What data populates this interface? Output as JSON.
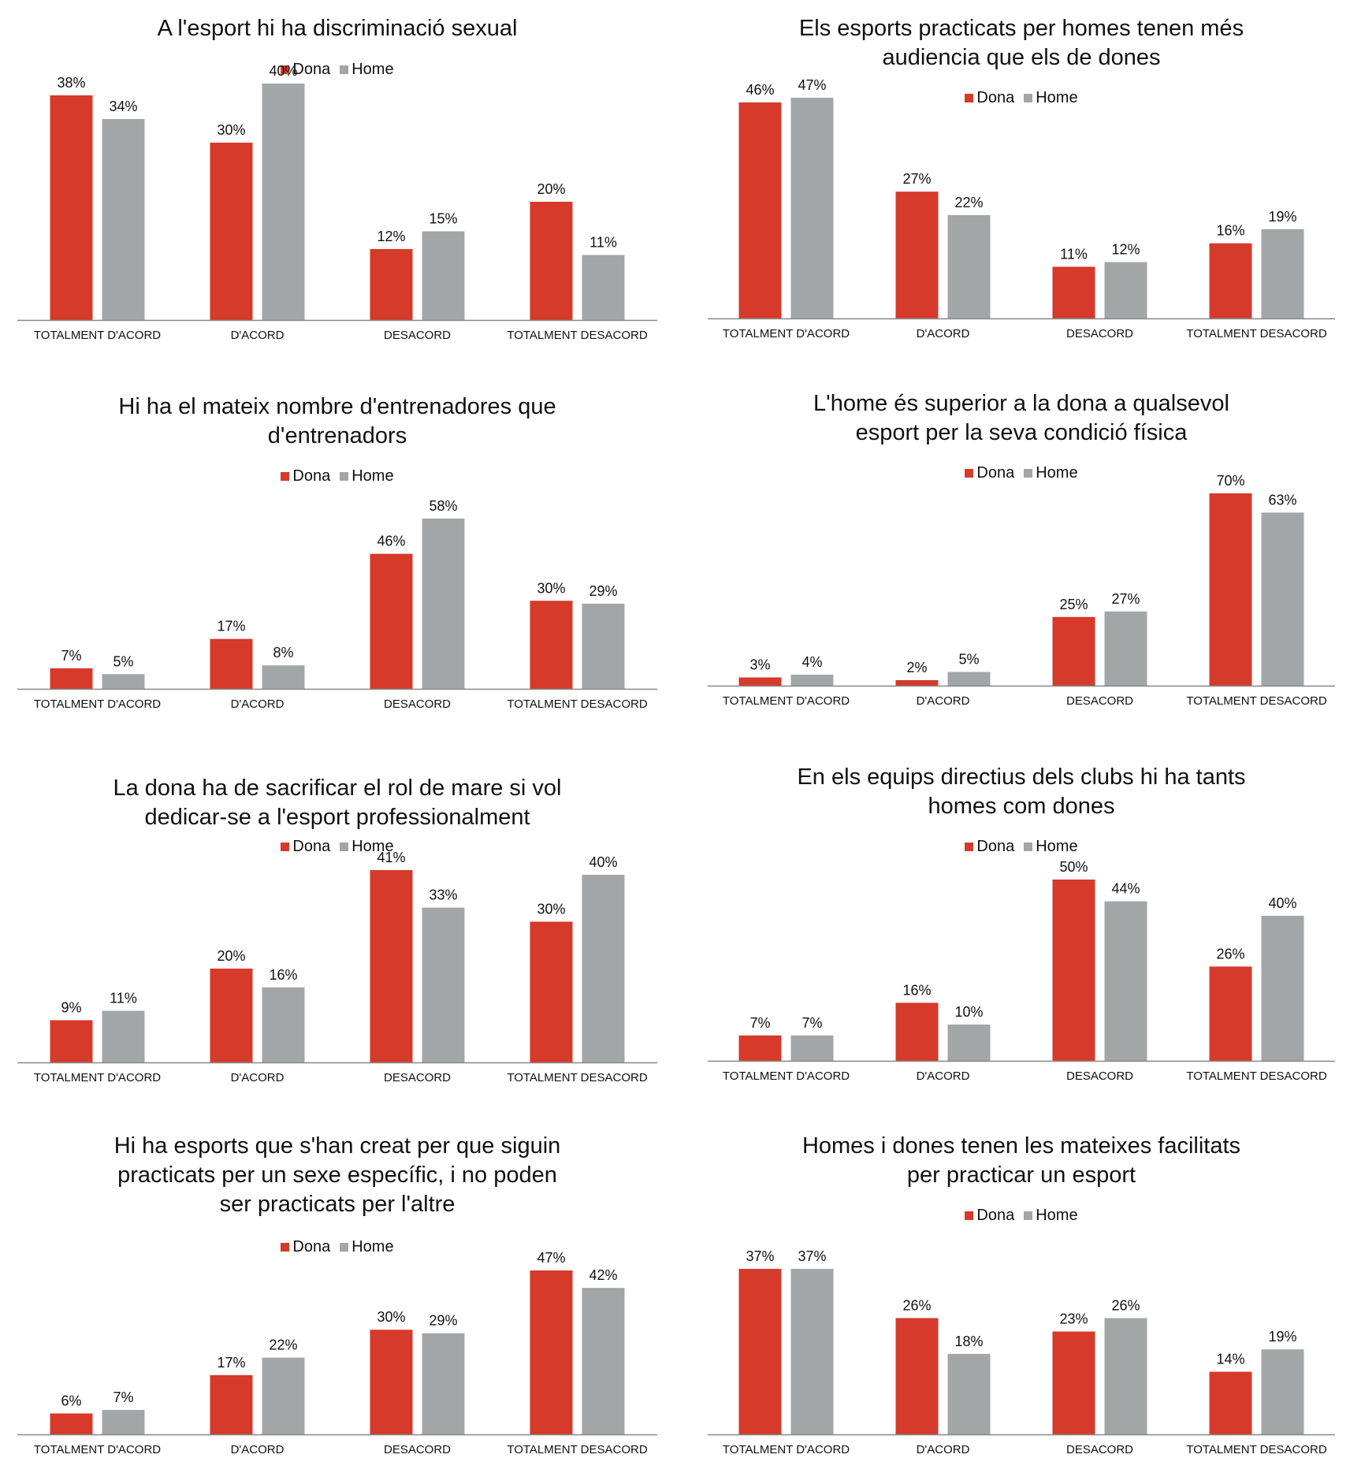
{
  "series_names": [
    "Dona",
    "Home"
  ],
  "colors": {
    "dona": "#d63a2a",
    "home": "#a3a6a7",
    "axis": "#888888"
  },
  "chart_data": [
    {
      "type": "bar",
      "title_lines": [
        "A l'esport hi ha discriminació sexual"
      ],
      "categories": [
        "TOTALMENT D'ACORD",
        "D'ACORD",
        "DESACORD",
        "TOTALMENT DESACORD"
      ],
      "series": [
        {
          "name": "Dona",
          "values": [
            38,
            30,
            12,
            20
          ]
        },
        {
          "name": "Home",
          "values": [
            34,
            40,
            15,
            11
          ]
        }
      ],
      "value_labels": {
        "Dona": [
          "38%",
          "30%",
          "12%",
          "20%"
        ],
        "Home": [
          "34%",
          "40%",
          "15%",
          "11%"
        ]
      },
      "unit": "%"
    },
    {
      "type": "bar",
      "title_lines": [
        "Els esports practicats per homes tenen més",
        "audiencia que els de dones"
      ],
      "categories": [
        "TOTALMENT D'ACORD",
        "D'ACORD",
        "DESACORD",
        "TOTALMENT DESACORD"
      ],
      "series": [
        {
          "name": "Dona",
          "values": [
            46,
            27,
            11,
            16
          ]
        },
        {
          "name": "Home",
          "values": [
            47,
            22,
            12,
            19
          ]
        }
      ],
      "value_labels": {
        "Dona": [
          "46%",
          "27%",
          "11%",
          "16%"
        ],
        "Home": [
          "47%",
          "22%",
          "12%",
          "19%"
        ]
      },
      "unit": "%"
    },
    {
      "type": "bar",
      "title_lines": [
        "Hi ha el mateix nombre d'entrenadores que",
        "d'entrenadors"
      ],
      "categories": [
        "TOTALMENT D'ACORD",
        "D'ACORD",
        "DESACORD",
        "TOTALMENT DESACORD"
      ],
      "series": [
        {
          "name": "Dona",
          "values": [
            7,
            17,
            46,
            30
          ]
        },
        {
          "name": "Home",
          "values": [
            5,
            8,
            58,
            29
          ]
        }
      ],
      "value_labels": {
        "Dona": [
          "7%",
          "17%",
          "46%",
          "30%"
        ],
        "Home": [
          "5%",
          "8%",
          "58%",
          "29%"
        ]
      },
      "unit": "%"
    },
    {
      "type": "bar",
      "title_lines": [
        "L'home és superior a la dona a qualsevol",
        "esport per la seva condició física"
      ],
      "categories": [
        "TOTALMENT D'ACORD",
        "D'ACORD",
        "DESACORD",
        "TOTALMENT DESACORD"
      ],
      "series": [
        {
          "name": "Dona",
          "values": [
            3,
            2,
            25,
            70
          ]
        },
        {
          "name": "Home",
          "values": [
            4,
            5,
            27,
            63
          ]
        }
      ],
      "value_labels": {
        "Dona": [
          "3%",
          "2%",
          "25%",
          "70%"
        ],
        "Home": [
          "4%",
          "5%",
          "27%",
          "63%"
        ]
      },
      "unit": "%"
    },
    {
      "type": "bar",
      "title_lines": [
        "La dona ha de sacrificar el rol de mare si vol",
        "dedicar-se a l'esport professionalment"
      ],
      "categories": [
        "TOTALMENT D'ACORD",
        "D'ACORD",
        "DESACORD",
        "TOTALMENT DESACORD"
      ],
      "series": [
        {
          "name": "Dona",
          "values": [
            9,
            20,
            41,
            30
          ]
        },
        {
          "name": "Home",
          "values": [
            11,
            16,
            33,
            40
          ]
        }
      ],
      "value_labels": {
        "Dona": [
          "9%",
          "20%",
          "41%",
          "30%"
        ],
        "Home": [
          "11%",
          "16%",
          "33%",
          "40%"
        ]
      },
      "unit": "%"
    },
    {
      "type": "bar",
      "title_lines": [
        "En els equips directius dels clubs hi ha tants",
        "homes com dones"
      ],
      "categories": [
        "TOTALMENT D'ACORD",
        "D'ACORD",
        "DESACORD",
        "TOTALMENT DESACORD"
      ],
      "series": [
        {
          "name": "Dona",
          "values": [
            7,
            16,
            50,
            26
          ]
        },
        {
          "name": "Home",
          "values": [
            7,
            10,
            44,
            40
          ]
        }
      ],
      "value_labels": {
        "Dona": [
          "7%",
          "16%",
          "50%",
          "26%"
        ],
        "Home": [
          "7%",
          "10%",
          "44%",
          "40%"
        ]
      },
      "unit": "%"
    },
    {
      "type": "bar",
      "title_lines": [
        "Hi ha esports que s'han creat per que siguin",
        "practicats per un sexe específic, i no poden",
        "ser practicats per l'altre"
      ],
      "categories": [
        "TOTALMENT D'ACORD",
        "D'ACORD",
        "DESACORD",
        "TOTALMENT DESACORD"
      ],
      "series": [
        {
          "name": "Dona",
          "values": [
            6,
            17,
            30,
            47
          ]
        },
        {
          "name": "Home",
          "values": [
            7,
            22,
            29,
            42
          ]
        }
      ],
      "value_labels": {
        "Dona": [
          "6%",
          "17%",
          "30%",
          "47%"
        ],
        "Home": [
          "7%",
          "22%",
          "29%",
          "42%"
        ]
      },
      "unit": "%"
    },
    {
      "type": "bar",
      "title_lines": [
        "Homes i dones tenen les mateixes facilitats",
        "per practicar un esport"
      ],
      "categories": [
        "TOTALMENT D'ACORD",
        "D'ACORD",
        "DESACORD",
        "TOTALMENT DESACORD"
      ],
      "series": [
        {
          "name": "Dona",
          "values": [
            37,
            26,
            23,
            14
          ]
        },
        {
          "name": "Home",
          "values": [
            37,
            18,
            26,
            19
          ]
        }
      ],
      "value_labels": {
        "Dona": [
          "37%",
          "26%",
          "23%",
          "14%"
        ],
        "Home": [
          "37%",
          "18%",
          "26%",
          "19%"
        ]
      },
      "unit": "%"
    }
  ]
}
